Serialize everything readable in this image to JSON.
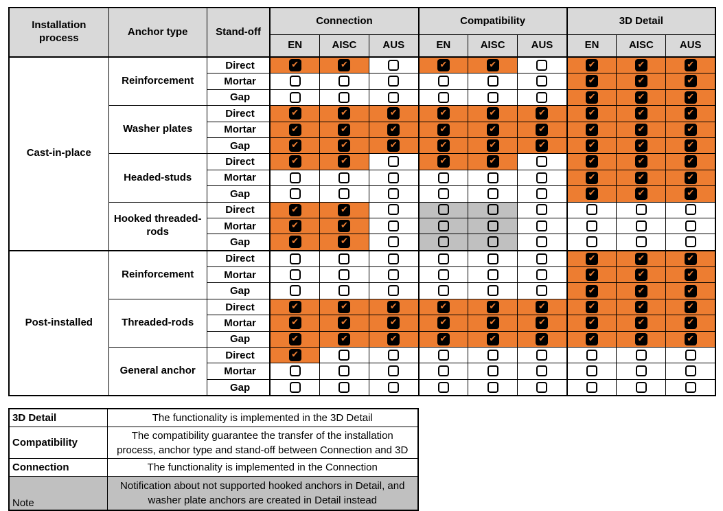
{
  "colors": {
    "accent_orange": "#ED7D31",
    "header_gray": "#D9D9D9",
    "disabled_gray": "#C0C0C0",
    "border_black": "#000000",
    "check_orange": "#ED7D31"
  },
  "icons": {
    "check_glyph": "✔",
    "checked_box": "checkbox-checked-icon",
    "unchecked_box": "checkbox-unchecked-icon"
  },
  "matrix": {
    "header": {
      "installation": "Installation process",
      "anchor_type": "Anchor type",
      "standoff": "Stand-off",
      "groups": [
        "Connection",
        "Compatibility",
        "3D Detail"
      ],
      "subcols": [
        "EN",
        "AISC",
        "AUS"
      ]
    },
    "cell_state_legend": {
      "c": "checked, orange background",
      "u": "unchecked, white background",
      "g": "unchecked, gray background"
    },
    "processes": [
      {
        "name": "Cast-in-place",
        "anchors": [
          {
            "name": "Reinforcement",
            "rows": [
              {
                "standoff": "Direct",
                "cells": "ccuccuccc"
              },
              {
                "standoff": "Mortar",
                "cells": "uuuuuuccc"
              },
              {
                "standoff": "Gap",
                "cells": "uuuuuuccc"
              }
            ]
          },
          {
            "name": "Washer plates",
            "rows": [
              {
                "standoff": "Direct",
                "cells": "ccccccccc"
              },
              {
                "standoff": "Mortar",
                "cells": "ccccccccc"
              },
              {
                "standoff": "Gap",
                "cells": "ccccccccc"
              }
            ]
          },
          {
            "name": "Headed-studs",
            "rows": [
              {
                "standoff": "Direct",
                "cells": "ccuccuccc"
              },
              {
                "standoff": "Mortar",
                "cells": "uuuuuuccc"
              },
              {
                "standoff": "Gap",
                "cells": "uuuuuuccc"
              }
            ]
          },
          {
            "name": "Hooked threaded-rods",
            "rows": [
              {
                "standoff": "Direct",
                "cells": "ccugguuuu"
              },
              {
                "standoff": "Mortar",
                "cells": "ccugguuuu"
              },
              {
                "standoff": "Gap",
                "cells": "ccugguuuu"
              }
            ]
          }
        ]
      },
      {
        "name": "Post-installed",
        "anchors": [
          {
            "name": "Reinforcement",
            "rows": [
              {
                "standoff": "Direct",
                "cells": "uuuuuuccc"
              },
              {
                "standoff": "Mortar",
                "cells": "uuuuuuccc"
              },
              {
                "standoff": "Gap",
                "cells": "uuuuuuccc"
              }
            ]
          },
          {
            "name": "Threaded-rods",
            "rows": [
              {
                "standoff": "Direct",
                "cells": "ccccccccc"
              },
              {
                "standoff": "Mortar",
                "cells": "ccccccccc"
              },
              {
                "standoff": "Gap",
                "cells": "ccccccccc"
              }
            ]
          },
          {
            "name": "General anchor",
            "rows": [
              {
                "standoff": "Direct",
                "cells": "cuuuuuuuu"
              },
              {
                "standoff": "Mortar",
                "cells": "uuuuuuuuu"
              },
              {
                "standoff": "Gap",
                "cells": "uuuuuuuuu"
              }
            ]
          }
        ]
      }
    ]
  },
  "legend": {
    "rows": [
      {
        "term": "3D Detail",
        "desc": "The functionality is implemented in the 3D Detail",
        "gray": false
      },
      {
        "term": "Compatibility",
        "desc": "The compatibility guarantee the transfer of the installation process, anchor type and stand-off between Connection and 3D",
        "gray": false
      },
      {
        "term": "Connection",
        "desc": "The functionality is implemented in the Connection",
        "gray": false
      },
      {
        "term": "Note",
        "desc": "Notification about not supported hooked anchors in Detail, and washer plate anchors are created in Detail instead",
        "gray": true
      }
    ]
  }
}
